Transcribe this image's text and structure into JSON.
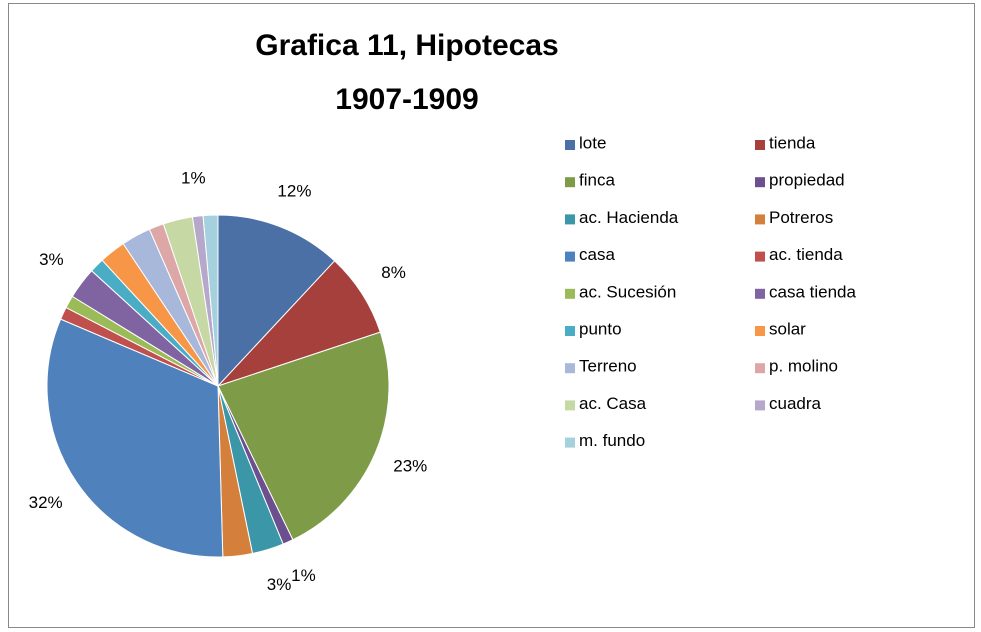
{
  "chart_data": {
    "type": "pie",
    "title": [
      "Grafica 11, Hipotecas",
      "1907-1909"
    ],
    "categories": [
      "lote",
      "tienda",
      "finca",
      "propiedad",
      "ac. Hacienda",
      "Potreros",
      "casa",
      "ac. tienda",
      "ac. Sucesión",
      "casa tienda",
      "punto",
      "solar",
      "Terreno",
      "p. molino",
      "ac. Casa",
      "cuadra",
      "m. fundo"
    ],
    "values": [
      12,
      8,
      23,
      1,
      3,
      2.8,
      32,
      1.2,
      1.2,
      3,
      1.4,
      2.5,
      2.8,
      1.4,
      2.8,
      1,
      1.4
    ],
    "value_labels": [
      "12%",
      "8%",
      "23%",
      "1%",
      "3%",
      null,
      "32%",
      null,
      null,
      "3%",
      null,
      null,
      null,
      null,
      null,
      "1%",
      null
    ],
    "colors": [
      "#4a70a6",
      "#a5403d",
      "#7e9b48",
      "#6b4f8e",
      "#3b97a8",
      "#d4803c",
      "#4f81bd",
      "#c0504d",
      "#9bbb59",
      "#8064a2",
      "#4bacc6",
      "#f79646",
      "#a7b8da",
      "#dca7a6",
      "#c6d8a3",
      "#b5a8ca",
      "#a5d0de"
    ],
    "legend": "right"
  }
}
